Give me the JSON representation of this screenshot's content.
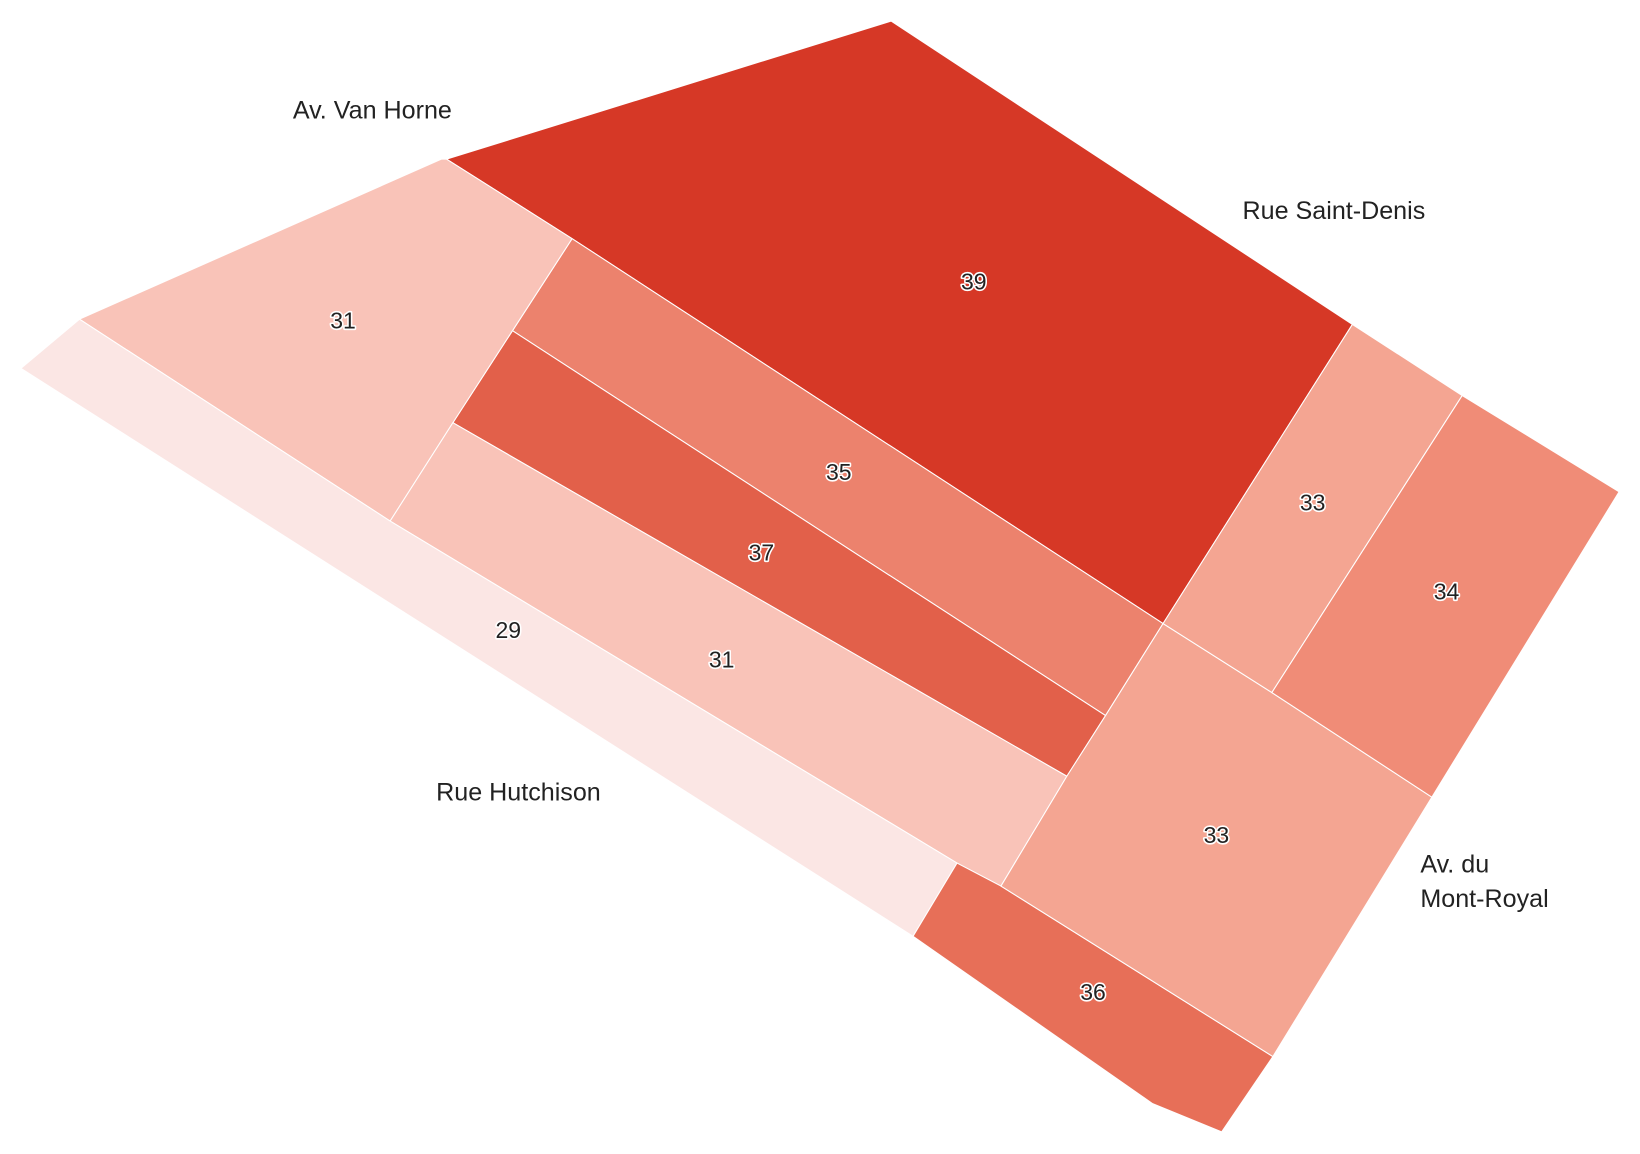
{
  "map": {
    "streets": [
      "Av. Van Horne",
      "Rue Saint-Denis",
      "Rue Hutchison",
      [
        "Av. du",
        "Mont-Royal"
      ]
    ],
    "regions": [
      {
        "value": 39,
        "color": "#d63826"
      },
      {
        "value": 35,
        "color": "#ec826d"
      },
      {
        "value": 37,
        "color": "#e2604a"
      },
      {
        "value": 31,
        "color": "#f9c3b8"
      },
      {
        "value": 31,
        "color": "#f9c3b8"
      },
      {
        "value": 29,
        "color": "#fbe6e4"
      },
      {
        "value": 36,
        "color": "#e76f58"
      },
      {
        "value": 33,
        "color": "#f4a592"
      },
      {
        "value": 33,
        "color": "#f4a592"
      },
      {
        "value": 34,
        "color": "#f08c77"
      }
    ]
  }
}
